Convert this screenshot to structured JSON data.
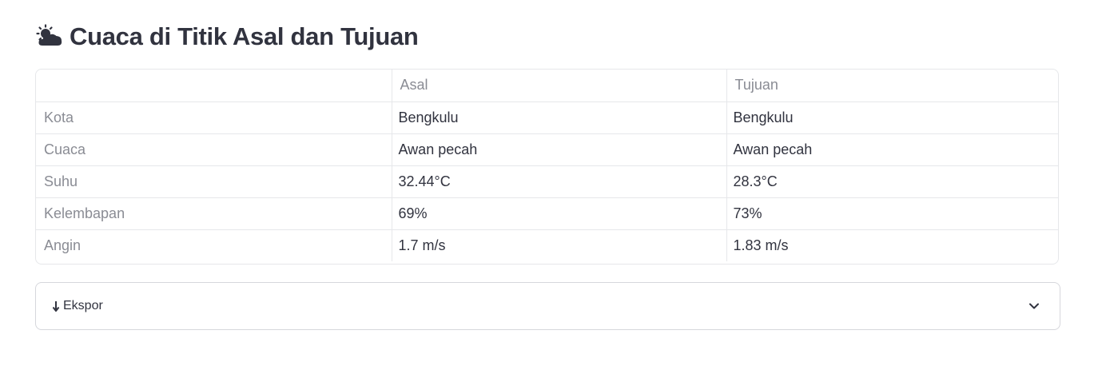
{
  "header": {
    "title": "Cuaca di Titik Asal dan Tujuan",
    "icon": "sun-behind-cloud-icon"
  },
  "weather_table": {
    "columns": [
      "",
      "Asal",
      "Tujuan"
    ],
    "rows": [
      {
        "label": "Kota",
        "asal": "Bengkulu",
        "tujuan": "Bengkulu"
      },
      {
        "label": "Cuaca",
        "asal": "Awan pecah",
        "tujuan": "Awan pecah"
      },
      {
        "label": "Suhu",
        "asal": "32.44°C",
        "tujuan": "28.3°C"
      },
      {
        "label": "Kelembapan",
        "asal": "69%",
        "tujuan": "73%"
      },
      {
        "label": "Angin",
        "asal": "1.7 m/s",
        "tujuan": "1.83 m/s"
      }
    ]
  },
  "export_expander": {
    "label": "Ekspor",
    "icon": "download-arrow-icon",
    "toggle_icon": "chevron-down-icon",
    "expanded": false
  },
  "colors": {
    "text": "#31333f",
    "muted": "#8a8c94",
    "border": "#e6e7ea"
  }
}
